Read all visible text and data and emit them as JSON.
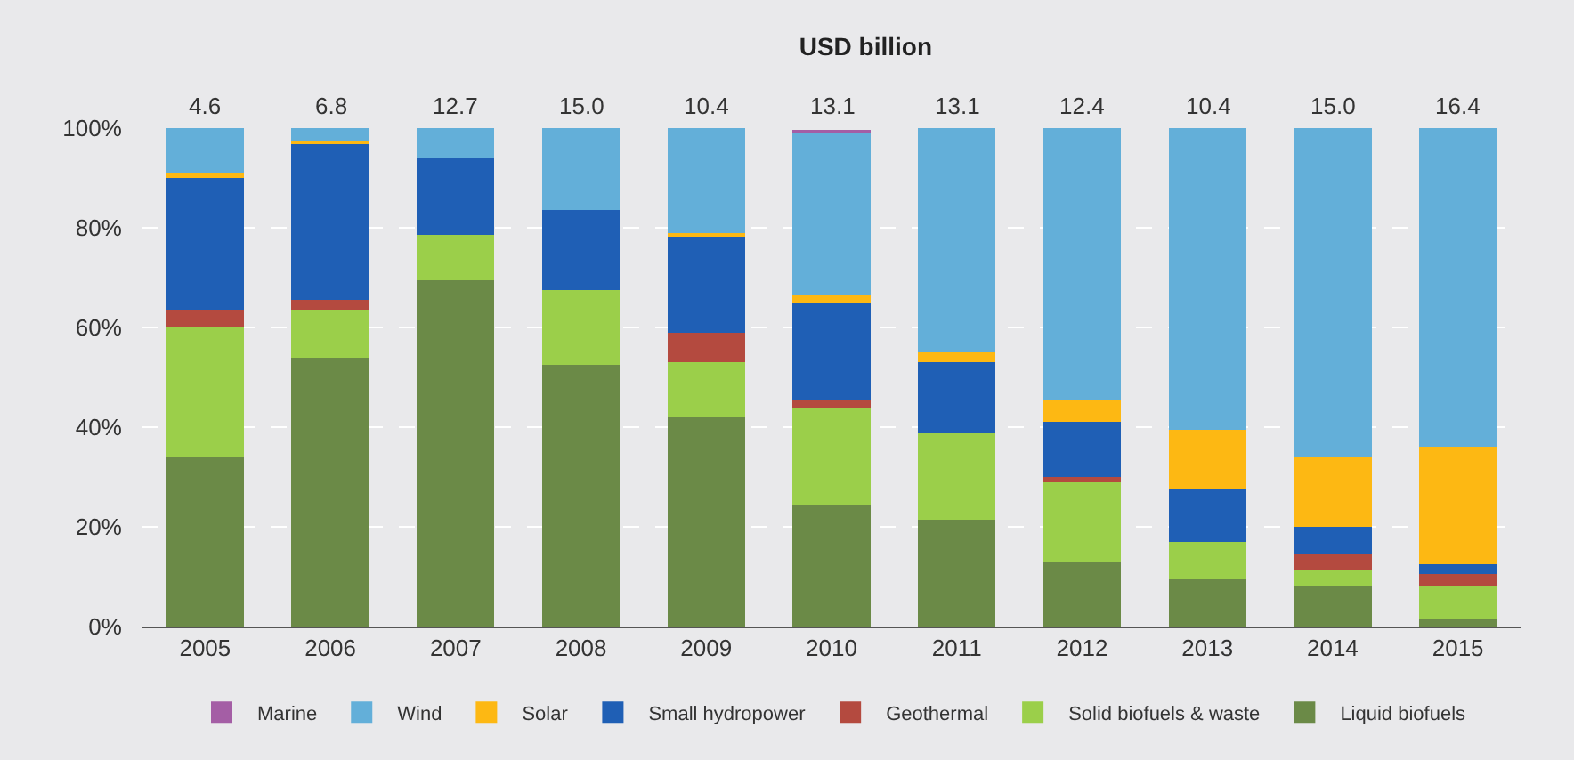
{
  "chart_data": {
    "type": "bar",
    "title": "USD billion",
    "stacked": true,
    "categories": [
      "2005",
      "2006",
      "2007",
      "2008",
      "2009",
      "2010",
      "2011",
      "2012",
      "2013",
      "2014",
      "2015"
    ],
    "series": [
      {
        "name": "Liquid biofuels",
        "color": "#6b8a47",
        "values": [
          34,
          54,
          69.5,
          52.5,
          42,
          24.5,
          21.5,
          13,
          9.5,
          8,
          1.5
        ]
      },
      {
        "name": "Solid biofuels & waste",
        "color": "#9bcf4a",
        "values": [
          26,
          9.5,
          9,
          15,
          11,
          19.5,
          17.5,
          16,
          7.5,
          3.5,
          6.5
        ]
      },
      {
        "name": "Geothermal",
        "color": "#b44a3f",
        "values": [
          3.5,
          2,
          0,
          0,
          6,
          1.5,
          0,
          1,
          0,
          3,
          2.5
        ]
      },
      {
        "name": "Small hydropower",
        "color": "#1f5fb5",
        "values": [
          26.5,
          31.5,
          15.5,
          16,
          19.5,
          19.5,
          14,
          11,
          10.5,
          5.5,
          2
        ]
      },
      {
        "name": "Solar",
        "color": "#fdb813",
        "values": [
          1,
          0.5,
          0,
          0,
          0.5,
          1.5,
          2,
          4.5,
          12,
          14,
          23.5
        ]
      },
      {
        "name": "Wind",
        "color": "#63afd9",
        "values": [
          9,
          2.5,
          6,
          16.5,
          21,
          32.5,
          45,
          54.5,
          60.5,
          66,
          64
        ]
      },
      {
        "name": "Marine",
        "color": "#a45ea5",
        "values": [
          0,
          0,
          0,
          0,
          0,
          0.5,
          0,
          0,
          0,
          0,
          0
        ]
      }
    ],
    "annotations": [
      "4.6",
      "6.8",
      "12.7",
      "15.0",
      "10.4",
      "13.1",
      "13.1",
      "12.4",
      "10.4",
      "15.0",
      "16.4"
    ],
    "ylim": [
      0,
      100
    ],
    "yticks": [
      {
        "value": 0,
        "label": "0%"
      },
      {
        "value": 20,
        "label": "20%"
      },
      {
        "value": 40,
        "label": "40%"
      },
      {
        "value": 60,
        "label": "60%"
      },
      {
        "value": 80,
        "label": "80%"
      },
      {
        "value": 100,
        "label": "100%"
      }
    ],
    "grid": "y",
    "legend": "bottom"
  }
}
